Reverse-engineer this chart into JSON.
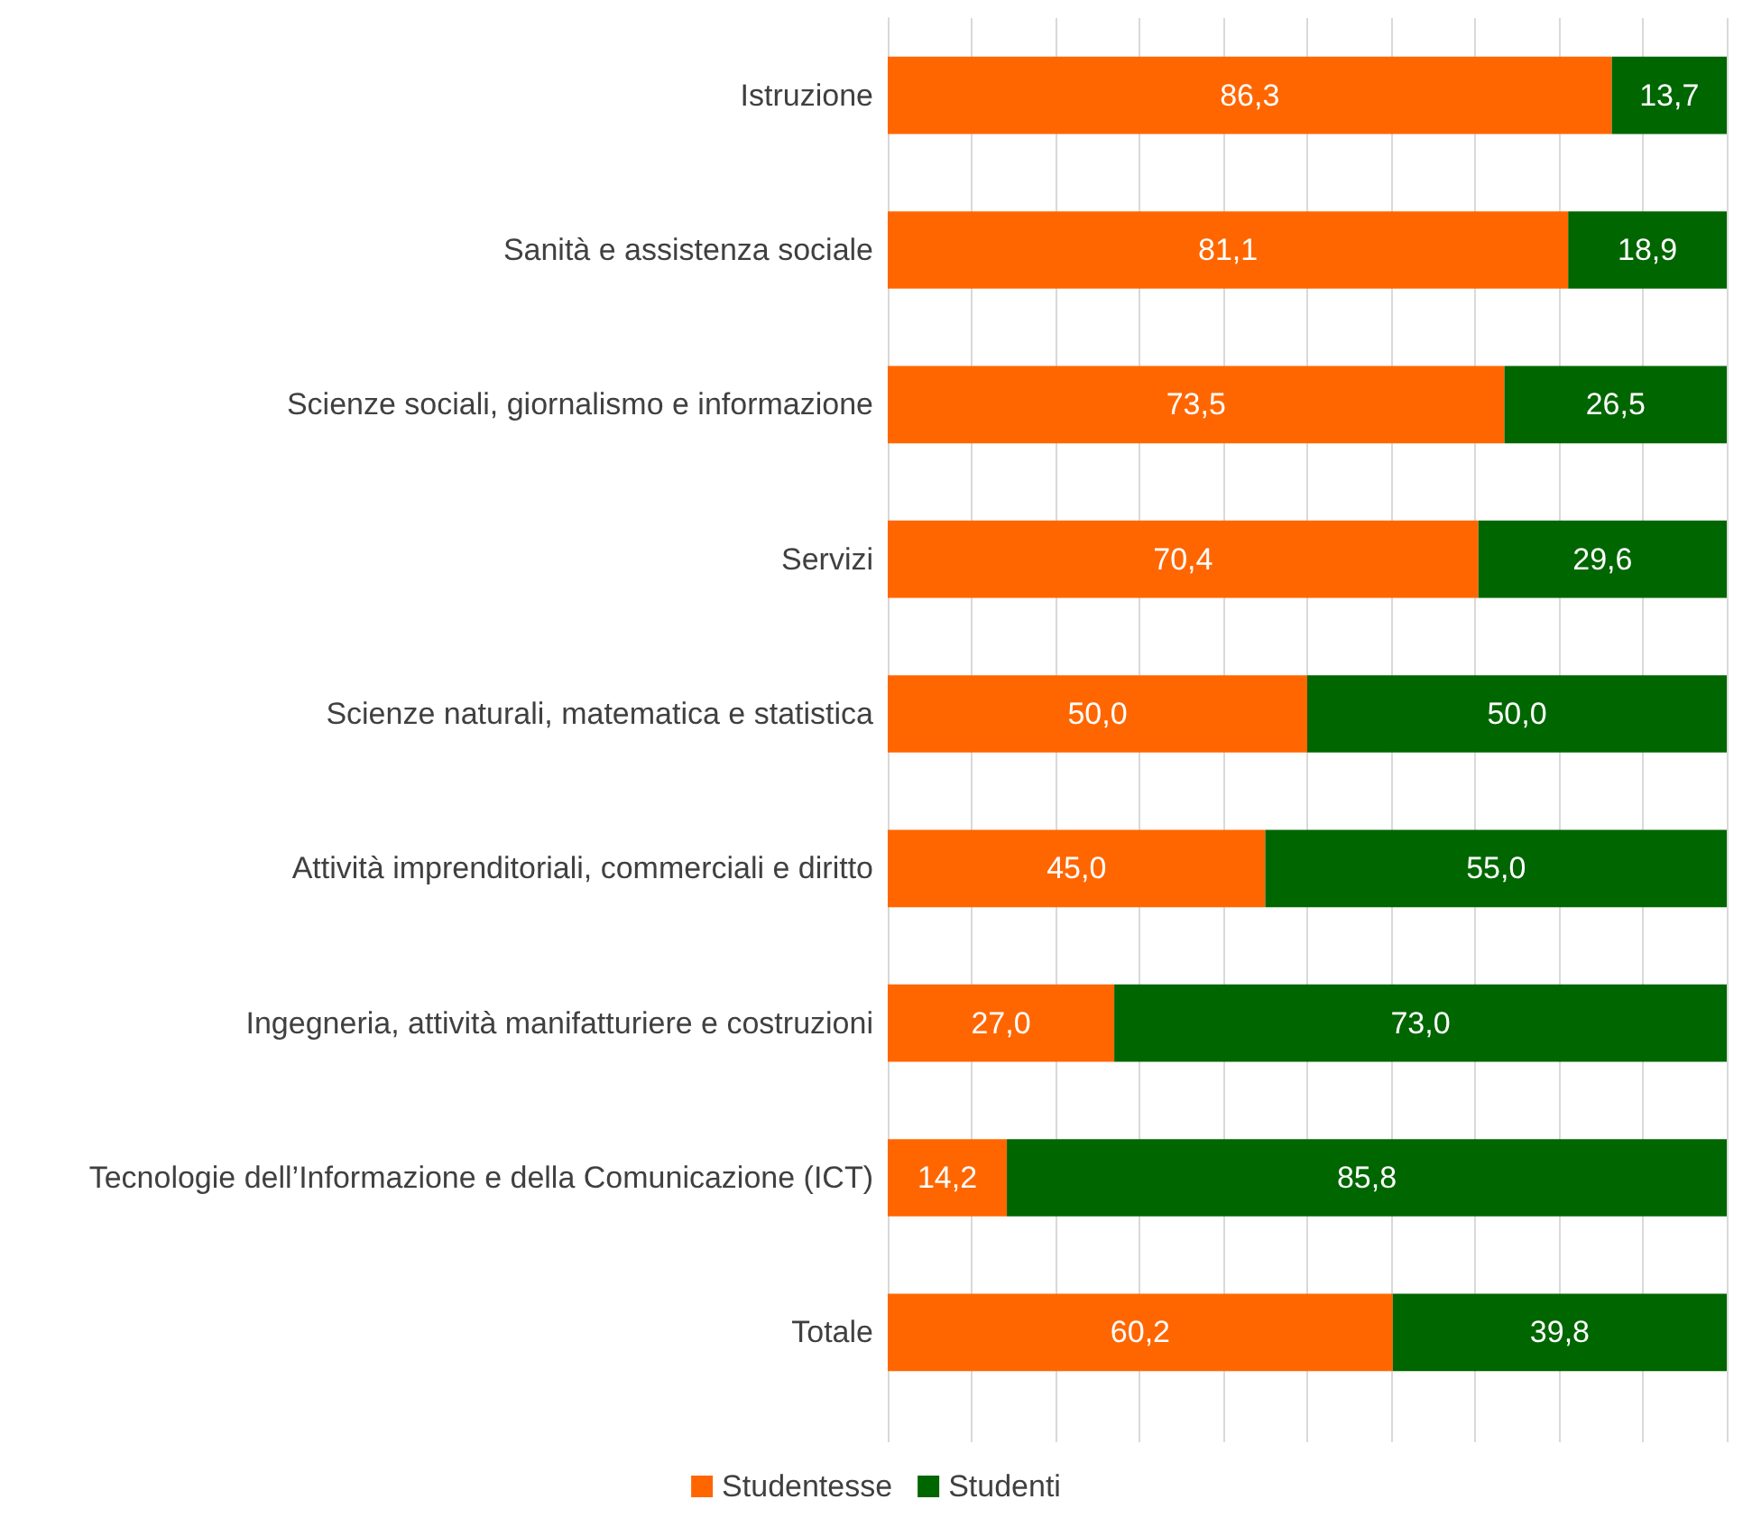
{
  "chart_data": {
    "type": "bar",
    "orientation": "horizontal",
    "stacked": true,
    "categories": [
      "Istruzione",
      "Sanità e assistenza sociale",
      "Scienze sociali, giornalismo e informazione",
      "Servizi",
      "Scienze naturali, matematica e statistica",
      "Attività imprenditoriali, commerciali e diritto",
      "Ingegneria, attività manifatturiere e costruzioni",
      "Tecnologie dell’Informazione e della Comunicazione (ICT)",
      "Totale"
    ],
    "series": [
      {
        "name": "Studentesse",
        "color": "#ff6600",
        "values": [
          86.3,
          81.1,
          73.5,
          70.4,
          50.0,
          45.0,
          27.0,
          14.2,
          60.2
        ],
        "value_labels": [
          "86,3",
          "81,1",
          "73,5",
          "70,4",
          "50,0",
          "45,0",
          "27,0",
          "14,2",
          "60,2"
        ]
      },
      {
        "name": "Studenti",
        "color": "#006600",
        "values": [
          13.7,
          18.9,
          26.5,
          29.6,
          50.0,
          55.0,
          73.0,
          85.8,
          39.8
        ],
        "value_labels": [
          "13,7",
          "18,9",
          "26,5",
          "29,6",
          "50,0",
          "55,0",
          "73,0",
          "85,8",
          "39,8"
        ]
      }
    ],
    "xlim": [
      0,
      100
    ],
    "xticks": [
      {
        "value": 0,
        "label": null
      },
      {
        "value": 10,
        "label": null
      },
      {
        "value": 20,
        "label": null
      },
      {
        "value": 30,
        "label": null
      },
      {
        "value": 40,
        "label": null
      },
      {
        "value": 50,
        "label": null
      },
      {
        "value": 60,
        "label": null
      },
      {
        "value": 70,
        "label": null
      },
      {
        "value": 80,
        "label": null
      },
      {
        "value": 90,
        "label": null
      },
      {
        "value": 100,
        "label": null
      }
    ],
    "tick_labels": "y",
    "grid": "x",
    "legend": "bottom"
  }
}
